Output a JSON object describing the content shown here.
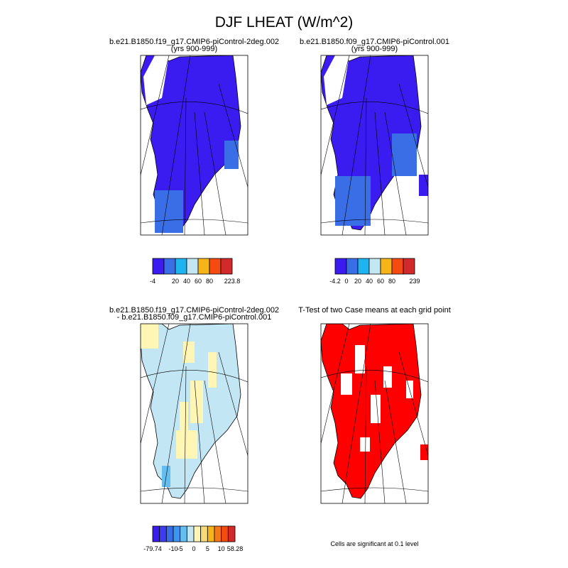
{
  "title": "DJF LHEAT (W/m^2)",
  "panels": [
    {
      "title": [
        "b.e21.B1850.f19_g17.CMIP6-piControl-2deg.002",
        "(yrs 900-999)"
      ],
      "fill": "#3b1cf0",
      "colorbar": {
        "colors": [
          "#3b1cf0",
          "#3a6ee6",
          "#1eb4f0",
          "#c3e6f5",
          "#f5b418",
          "#f54b12",
          "#d22a2a"
        ],
        "labels": [
          "-4",
          null,
          "20",
          "40",
          "60",
          "80",
          null,
          "223.8"
        ]
      }
    },
    {
      "title": [
        "b.e21.B1850.f09_g17.CMIP6-piControl.001",
        "(yrs 900-999)"
      ],
      "fill": "#3b1cf0",
      "colorbar": {
        "colors": [
          "#3b1cf0",
          "#3a6ee6",
          "#1eb4f0",
          "#c3e6f5",
          "#f5b418",
          "#f54b12",
          "#d22a2a"
        ],
        "labels": [
          "-4.2",
          "0",
          "20",
          "40",
          "60",
          "80",
          null,
          "239"
        ]
      }
    },
    {
      "title": [
        "b.e21.B1850.f19_g17.CMIP6-piControl-2deg.002",
        "- b.e21.B1850.f09_g17.CMIP6-piControl.001"
      ],
      "fill": "#c3e6f5",
      "colorbar": {
        "colors": [
          "#3b1cf0",
          "#3a3cf0",
          "#3a6ee6",
          "#3c96f0",
          "#64bef0",
          "#c3e6f5",
          "#fff5b4",
          "#f5dc78",
          "#f5b418",
          "#f57814",
          "#f54b12",
          "#d22a2a"
        ],
        "labels": [
          "-79.74",
          null,
          null,
          "-10",
          "-5",
          null,
          "0",
          null,
          "5",
          null,
          "10",
          null,
          "58.28"
        ]
      }
    },
    {
      "title": [
        "T-Test of two Case means at each grid point"
      ],
      "fill": "#ff0000",
      "note": "Cells are significant at 0.1 level"
    }
  ]
}
